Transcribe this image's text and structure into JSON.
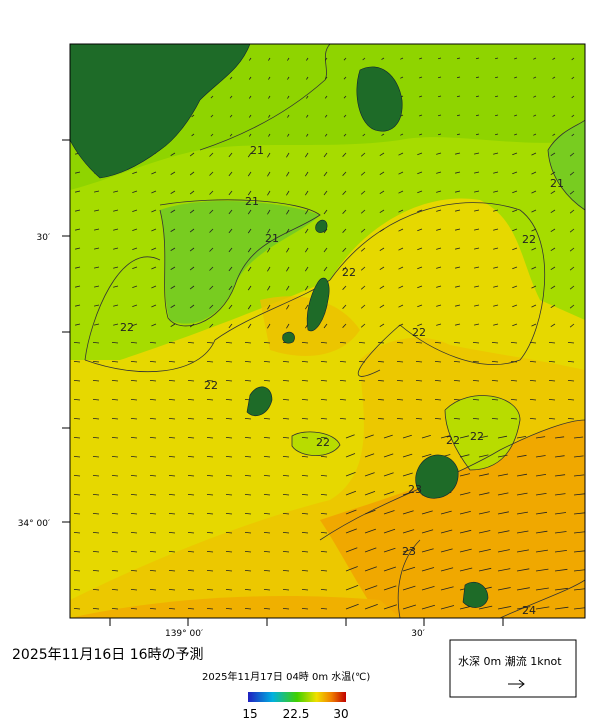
{
  "map": {
    "title": "2025年11月16日  16時の予測",
    "subtitle": "2025年11月17日 04時 0m 水温(℃)",
    "lat_labels": [
      "30′",
      "34° 00′"
    ],
    "lon_labels": [
      "139° 00′",
      "30′"
    ],
    "contour_labels": [
      "21",
      "21",
      "21",
      "21",
      "22",
      "22",
      "22",
      "22",
      "22",
      "22",
      "22",
      "22",
      "23",
      "23",
      "24"
    ],
    "colorbar_labels": [
      "15",
      "22.5",
      "30"
    ],
    "legend": "水深 0m 潮流 1knot"
  }
}
